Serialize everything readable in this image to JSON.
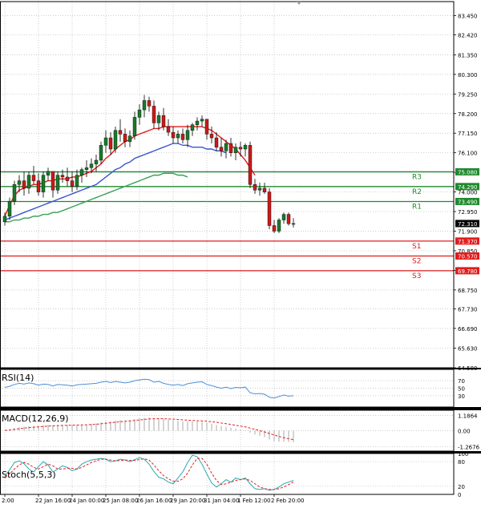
{
  "chart_data": {
    "type": "candlestick",
    "colors": {
      "bull": "#1a7a2a",
      "bear": "#cc1a1a",
      "ma_fast": "#e11b1b",
      "ma_mid": "#3a55cc",
      "ma_slow": "#3aa05a",
      "resistance": "#1f8a2e",
      "support": "#e01c1c",
      "rsi": "#4a90d9",
      "macd_hist": "#aaaaaa",
      "macd_signal": "#e02020",
      "stoch_k": "#2aa8b0",
      "stoch_d": "#e02020",
      "grid": "#bbbbbb"
    },
    "main": {
      "ylim": [
        64.58,
        84.2
      ],
      "y_ticks": [
        "83.450",
        "82.420",
        "81.350",
        "80.300",
        "79.250",
        "78.200",
        "77.150",
        "76.100",
        "75.050",
        "74.000",
        "72.950",
        "71.900",
        "70.850",
        "69.800",
        "68.750",
        "67.730",
        "66.690",
        "65.630",
        "64.580"
      ],
      "tick_values": [
        83.45,
        82.42,
        81.35,
        80.3,
        79.25,
        78.2,
        77.15,
        76.1,
        75.05,
        74.0,
        72.95,
        71.9,
        70.85,
        69.8,
        68.75,
        67.73,
        66.69,
        65.63,
        64.58
      ],
      "candles": [
        [
          72.4,
          72.9,
          72.2,
          72.7
        ],
        [
          72.7,
          73.7,
          72.5,
          73.5
        ],
        [
          73.5,
          74.6,
          73.3,
          74.4
        ],
        [
          74.4,
          74.9,
          74.0,
          74.6
        ],
        [
          74.6,
          75.1,
          73.8,
          74.2
        ],
        [
          74.2,
          75.1,
          73.9,
          74.9
        ],
        [
          74.9,
          75.4,
          74.4,
          74.6
        ],
        [
          74.6,
          75.0,
          73.8,
          74.0
        ],
        [
          74.0,
          75.1,
          73.7,
          74.9
        ],
        [
          74.9,
          75.3,
          74.6,
          75.1
        ],
        [
          75.1,
          75.0,
          73.7,
          74.1
        ],
        [
          74.1,
          75.1,
          73.9,
          74.9
        ],
        [
          74.9,
          75.2,
          74.5,
          74.8
        ],
        [
          74.8,
          75.3,
          74.3,
          74.6
        ],
        [
          74.6,
          75.1,
          74.0,
          74.3
        ],
        [
          74.3,
          75.2,
          74.1,
          74.9
        ],
        [
          74.9,
          75.3,
          74.5,
          75.2
        ],
        [
          75.2,
          75.7,
          74.8,
          75.3
        ],
        [
          75.3,
          75.8,
          75.0,
          75.5
        ],
        [
          75.5,
          76.0,
          75.1,
          75.7
        ],
        [
          75.7,
          76.7,
          75.5,
          76.5
        ],
        [
          76.5,
          77.3,
          76.1,
          76.9
        ],
        [
          76.9,
          77.2,
          76.0,
          76.3
        ],
        [
          76.3,
          77.5,
          76.1,
          77.3
        ],
        [
          77.3,
          77.9,
          76.7,
          77.1
        ],
        [
          77.1,
          77.4,
          76.4,
          76.7
        ],
        [
          76.7,
          77.3,
          76.4,
          77.0
        ],
        [
          77.0,
          78.3,
          76.8,
          78.0
        ],
        [
          78.0,
          78.7,
          77.6,
          78.4
        ],
        [
          78.4,
          79.2,
          78.0,
          78.9
        ],
        [
          78.9,
          79.1,
          78.3,
          78.6
        ],
        [
          78.6,
          78.9,
          77.4,
          77.7
        ],
        [
          77.7,
          78.3,
          77.3,
          78.1
        ],
        [
          78.1,
          78.5,
          77.3,
          77.5
        ],
        [
          77.5,
          77.9,
          77.0,
          77.2
        ],
        [
          77.2,
          77.5,
          76.6,
          76.9
        ],
        [
          76.9,
          77.3,
          76.6,
          77.1
        ],
        [
          77.1,
          77.4,
          76.6,
          76.8
        ],
        [
          76.8,
          77.6,
          76.4,
          77.3
        ],
        [
          77.3,
          77.7,
          77.0,
          77.6
        ],
        [
          77.6,
          78.0,
          77.3,
          77.8
        ],
        [
          77.8,
          78.1,
          77.5,
          77.9
        ],
        [
          77.9,
          77.9,
          76.8,
          77.1
        ],
        [
          77.1,
          77.5,
          76.6,
          76.9
        ],
        [
          76.9,
          77.2,
          76.2,
          76.4
        ],
        [
          76.4,
          76.9,
          75.9,
          76.2
        ],
        [
          76.2,
          76.8,
          75.8,
          76.6
        ],
        [
          76.6,
          76.9,
          75.9,
          76.1
        ],
        [
          76.1,
          76.6,
          75.7,
          76.4
        ],
        [
          76.4,
          76.7,
          75.9,
          76.3
        ],
        [
          76.3,
          76.6,
          75.9,
          76.5
        ],
        [
          76.5,
          76.7,
          74.2,
          74.4
        ],
        [
          74.4,
          74.7,
          73.9,
          74.1
        ],
        [
          74.1,
          74.5,
          73.8,
          74.2
        ],
        [
          74.2,
          74.5,
          73.9,
          74.0
        ],
        [
          74.0,
          74.2,
          72.0,
          72.2
        ],
        [
          72.2,
          72.5,
          71.8,
          71.9
        ],
        [
          71.9,
          72.6,
          71.8,
          72.5
        ],
        [
          72.5,
          72.9,
          72.3,
          72.8
        ],
        [
          72.8,
          72.9,
          72.2,
          72.3
        ],
        [
          72.3,
          72.6,
          72.1,
          72.31
        ]
      ],
      "ma_fast": [
        72.7,
        73.3,
        73.8,
        74.1,
        74.2,
        74.3,
        74.4,
        74.4,
        74.5,
        74.6,
        74.6,
        74.7,
        74.7,
        74.7,
        74.8,
        74.8,
        74.9,
        75.0,
        75.1,
        75.3,
        75.5,
        75.8,
        76.0,
        76.3,
        76.5,
        76.7,
        76.8,
        77.0,
        77.1,
        77.2,
        77.3,
        77.4,
        77.4,
        77.5,
        77.5,
        77.5,
        77.5,
        77.5,
        77.5,
        77.5,
        77.5,
        77.5,
        77.4,
        77.3,
        77.1,
        76.9,
        76.7,
        76.5,
        76.3,
        76.0,
        75.7,
        75.3,
        74.9
      ],
      "ma_mid": [
        72.5,
        72.6,
        72.7,
        72.8,
        72.9,
        73.0,
        73.1,
        73.2,
        73.3,
        73.4,
        73.5,
        73.6,
        73.7,
        73.8,
        73.9,
        74.0,
        74.1,
        74.2,
        74.3,
        74.4,
        74.6,
        74.8,
        75.0,
        75.2,
        75.3,
        75.5,
        75.6,
        75.8,
        75.9,
        76.0,
        76.1,
        76.2,
        76.3,
        76.4,
        76.5,
        76.6,
        76.6,
        76.5,
        76.5,
        76.4,
        76.4,
        76.4,
        76.3,
        76.3,
        76.2,
        76.2,
        76.1
      ],
      "ma_slow": [
        72.4,
        72.4,
        72.5,
        72.5,
        72.6,
        72.6,
        72.7,
        72.7,
        72.8,
        72.8,
        72.9,
        72.9,
        73.0,
        73.1,
        73.2,
        73.3,
        73.4,
        73.5,
        73.6,
        73.7,
        73.8,
        73.9,
        74.0,
        74.1,
        74.2,
        74.3,
        74.4,
        74.5,
        74.6,
        74.7,
        74.8,
        74.9,
        74.9,
        75.0,
        75.0,
        75.0,
        74.9,
        74.9,
        74.8
      ],
      "levels": [
        {
          "name": "R3",
          "value": 75.08,
          "label": "75.080",
          "kind": "resistance"
        },
        {
          "name": "R2",
          "value": 74.29,
          "label": "74.290",
          "kind": "resistance"
        },
        {
          "name": "R1",
          "value": 73.49,
          "label": "73.490",
          "kind": "resistance"
        },
        {
          "name": "S1",
          "value": 71.37,
          "label": "71.370",
          "kind": "support"
        },
        {
          "name": "S2",
          "value": 70.57,
          "label": "70.570",
          "kind": "support"
        },
        {
          "name": "S3",
          "value": 69.78,
          "label": "69.780",
          "kind": "support"
        }
      ],
      "last_price": "72.310"
    },
    "rsi": {
      "title": "RSI(14)",
      "ylim": [
        0,
        100
      ],
      "ticks": [
        "70",
        "50",
        "30"
      ],
      "tick_values": [
        70,
        50,
        30
      ],
      "values": [
        52,
        55,
        60,
        63,
        61,
        64,
        62,
        58,
        61,
        60,
        56,
        60,
        59,
        58,
        56,
        59,
        60,
        61,
        62,
        63,
        66,
        68,
        65,
        68,
        66,
        64,
        66,
        70,
        72,
        74,
        73,
        66,
        68,
        63,
        60,
        58,
        60,
        57,
        62,
        64,
        66,
        67,
        60,
        57,
        53,
        50,
        53,
        49,
        52,
        51,
        53,
        38,
        35,
        36,
        34,
        26,
        24,
        28,
        32,
        29,
        30
      ]
    },
    "macd": {
      "title": "MACD(12,26,9)",
      "ylim": [
        -1.6,
        1.6
      ],
      "ticks": [
        "1.1864",
        "0.00",
        "-1.2676"
      ],
      "tick_values": [
        1.1864,
        0,
        -1.2676
      ],
      "hist": [
        0.05,
        0.1,
        0.2,
        0.28,
        0.32,
        0.36,
        0.38,
        0.39,
        0.42,
        0.45,
        0.44,
        0.45,
        0.46,
        0.45,
        0.44,
        0.46,
        0.48,
        0.5,
        0.53,
        0.58,
        0.65,
        0.72,
        0.75,
        0.8,
        0.82,
        0.82,
        0.84,
        0.9,
        0.96,
        1.02,
        1.04,
        1.0,
        0.98,
        0.94,
        0.88,
        0.82,
        0.78,
        0.72,
        0.72,
        0.72,
        0.72,
        0.7,
        0.62,
        0.54,
        0.45,
        0.36,
        0.3,
        0.22,
        0.16,
        0.1,
        0.05,
        -0.15,
        -0.3,
        -0.4,
        -0.5,
        -0.7,
        -0.82,
        -0.86,
        -0.86,
        -0.88,
        -0.9
      ],
      "signal": [
        0.02,
        0.05,
        0.1,
        0.15,
        0.2,
        0.24,
        0.27,
        0.3,
        0.33,
        0.36,
        0.38,
        0.4,
        0.41,
        0.42,
        0.43,
        0.44,
        0.45,
        0.46,
        0.48,
        0.5,
        0.54,
        0.58,
        0.62,
        0.66,
        0.7,
        0.73,
        0.76,
        0.8,
        0.84,
        0.88,
        0.92,
        0.93,
        0.93,
        0.93,
        0.92,
        0.9,
        0.88,
        0.85,
        0.82,
        0.8,
        0.78,
        0.77,
        0.74,
        0.7,
        0.66,
        0.6,
        0.55,
        0.49,
        0.42,
        0.36,
        0.3,
        0.2,
        0.1,
        0.0,
        -0.1,
        -0.22,
        -0.34,
        -0.45,
        -0.55,
        -0.63,
        -0.7
      ]
    },
    "stoch": {
      "title": "Stoch(5,5,3)",
      "ylim": [
        0,
        100
      ],
      "ticks": [
        "100",
        "80",
        "20",
        "0"
      ],
      "tick_values": [
        100,
        80,
        20,
        0
      ],
      "k": [
        45,
        60,
        78,
        82,
        75,
        62,
        55,
        68,
        80,
        72,
        55,
        62,
        70,
        66,
        58,
        62,
        74,
        80,
        84,
        86,
        88,
        86,
        80,
        82,
        86,
        84,
        80,
        85,
        90,
        86,
        74,
        56,
        42,
        38,
        30,
        26,
        40,
        55,
        78,
        96,
        92,
        74,
        50,
        28,
        18,
        26,
        36,
        30,
        40,
        36,
        40,
        26,
        14,
        12,
        14,
        10,
        12,
        18,
        26,
        30,
        34
      ],
      "d": [
        40,
        50,
        62,
        72,
        78,
        74,
        66,
        62,
        68,
        74,
        70,
        62,
        62,
        64,
        64,
        62,
        66,
        72,
        78,
        82,
        86,
        86,
        84,
        82,
        83,
        84,
        83,
        83,
        85,
        87,
        84,
        72,
        58,
        46,
        38,
        32,
        32,
        38,
        52,
        72,
        88,
        88,
        74,
        52,
        34,
        24,
        26,
        30,
        34,
        36,
        38,
        34,
        26,
        18,
        14,
        12,
        12,
        14,
        18,
        24,
        30
      ]
    },
    "x_labels": [
      "2:00",
      "22 Jan 16:00",
      "24 Jan 00:00",
      "25 Jan 08:00",
      "26 Jan 16:00",
      "29 Jan 20:00",
      "31 Jan 04:00",
      "1 Feb 12:00",
      "2 Feb 20:00"
    ],
    "x_label_idx": [
      0,
      7,
      14,
      21,
      28,
      35,
      42,
      49,
      56
    ]
  }
}
